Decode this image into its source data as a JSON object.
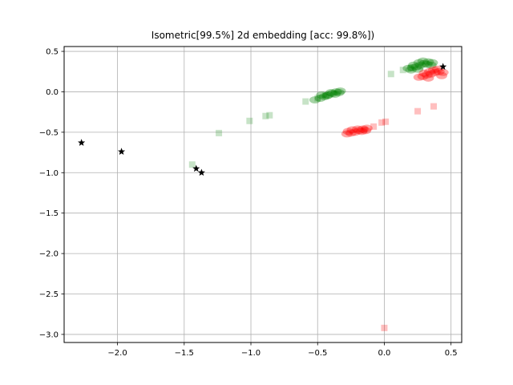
{
  "chart_data": {
    "type": "scatter",
    "title": "Isometric[99.5%] 2d embedding [acc: 99.8%])",
    "xlabel": "",
    "ylabel": "",
    "xlim": [
      -2.4,
      0.58
    ],
    "ylim": [
      -3.1,
      0.56
    ],
    "grid": true,
    "legend": "none",
    "xticks": [
      -2.0,
      -1.5,
      -1.0,
      -0.5,
      0.0,
      0.5
    ],
    "yticks": [
      0.5,
      0.0,
      -0.5,
      -1.0,
      -1.5,
      -2.0,
      -2.5,
      -3.0
    ],
    "xtick_labels": [
      "−2.0",
      "−1.5",
      "−1.0",
      "−0.5",
      "0.0",
      "0.5"
    ],
    "ytick_labels": [
      "0.5",
      "0.0",
      "−0.5",
      "−1.0",
      "−1.5",
      "−2.0",
      "−2.5",
      "−3.0"
    ],
    "colors": {
      "green": "#008000",
      "red": "#ff0000",
      "star": "#000000",
      "grid": "#b0b0b0",
      "axes": "#000000"
    },
    "series": [
      {
        "marker": "square",
        "color": "#008000",
        "opacity": 0.22,
        "points": [
          [
            0.05,
            0.22
          ],
          [
            0.14,
            0.27
          ],
          [
            0.2,
            0.29
          ],
          [
            0.27,
            0.31
          ],
          [
            -0.59,
            -0.12
          ],
          [
            -0.86,
            -0.29
          ],
          [
            -0.89,
            -0.3
          ],
          [
            -1.01,
            -0.36
          ],
          [
            -1.24,
            -0.51
          ],
          [
            -1.44,
            -0.9
          ],
          [
            -0.5,
            -0.08
          ],
          [
            -0.44,
            -0.04
          ]
        ]
      },
      {
        "marker": "square",
        "color": "#ff0000",
        "opacity": 0.25,
        "points": [
          [
            0.37,
            -0.18
          ],
          [
            0.25,
            -0.24
          ],
          [
            0.01,
            -0.37
          ],
          [
            -0.02,
            -0.38
          ],
          [
            -0.08,
            -0.43
          ],
          [
            -0.15,
            -0.47
          ],
          [
            0.0,
            -2.92
          ]
        ]
      },
      {
        "marker": "circle",
        "color": "#008000",
        "opacity": 0.35,
        "points": [
          [
            -0.52,
            -0.1
          ],
          [
            -0.48,
            -0.08
          ],
          [
            -0.45,
            -0.06
          ],
          [
            -0.42,
            -0.04
          ],
          [
            -0.39,
            -0.02
          ],
          [
            -0.36,
            0.0
          ],
          [
            -0.33,
            0.01
          ],
          [
            -0.47,
            -0.04
          ],
          [
            -0.43,
            -0.05
          ],
          [
            -0.4,
            -0.01
          ],
          [
            -0.37,
            -0.03
          ],
          [
            -0.34,
            -0.01
          ],
          [
            0.18,
            0.29
          ],
          [
            0.21,
            0.3
          ],
          [
            0.24,
            0.31
          ],
          [
            0.27,
            0.33
          ],
          [
            0.3,
            0.35
          ],
          [
            0.33,
            0.37
          ],
          [
            0.36,
            0.36
          ],
          [
            0.22,
            0.33
          ],
          [
            0.26,
            0.36
          ],
          [
            0.29,
            0.38
          ],
          [
            0.32,
            0.34
          ],
          [
            0.35,
            0.33
          ],
          [
            0.2,
            0.27
          ],
          [
            0.25,
            0.28
          ]
        ]
      },
      {
        "marker": "circle",
        "color": "#ff0000",
        "opacity": 0.35,
        "points": [
          [
            -0.28,
            -0.52
          ],
          [
            -0.25,
            -0.51
          ],
          [
            -0.22,
            -0.5
          ],
          [
            -0.19,
            -0.48
          ],
          [
            -0.16,
            -0.46
          ],
          [
            -0.13,
            -0.45
          ],
          [
            -0.24,
            -0.47
          ],
          [
            -0.2,
            -0.46
          ],
          [
            -0.17,
            -0.49
          ],
          [
            -0.27,
            -0.49
          ],
          [
            -0.14,
            -0.48
          ],
          [
            0.26,
            0.18
          ],
          [
            0.29,
            0.19
          ],
          [
            0.32,
            0.21
          ],
          [
            0.35,
            0.22
          ],
          [
            0.38,
            0.24
          ],
          [
            0.41,
            0.25
          ],
          [
            0.44,
            0.24
          ],
          [
            0.3,
            0.23
          ],
          [
            0.34,
            0.25
          ],
          [
            0.37,
            0.27
          ],
          [
            0.4,
            0.28
          ],
          [
            0.43,
            0.2
          ],
          [
            0.33,
            0.17
          ]
        ]
      },
      {
        "marker": "star",
        "color": "#000000",
        "opacity": 1,
        "points": [
          [
            -2.27,
            -0.63
          ],
          [
            -1.97,
            -0.74
          ],
          [
            -1.41,
            -0.95
          ],
          [
            -1.37,
            -1.0
          ],
          [
            0.44,
            0.31
          ]
        ]
      }
    ]
  }
}
